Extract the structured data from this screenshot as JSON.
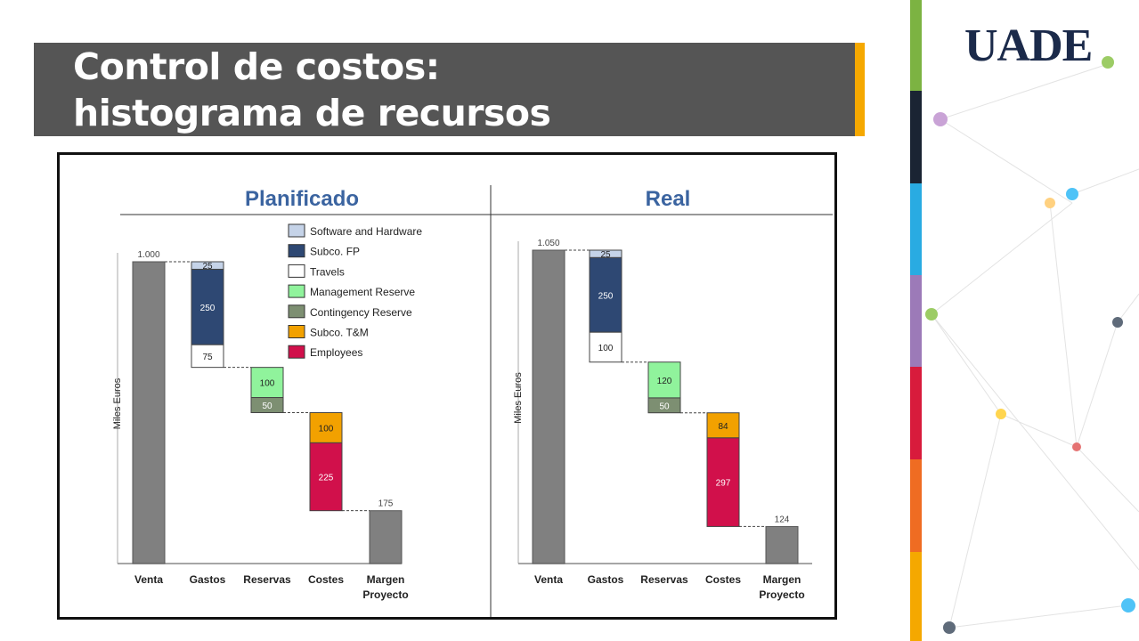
{
  "slide": {
    "title_line1": "Control de costos:",
    "title_line2": "histograma de recursos",
    "logo": "UADE"
  },
  "colors": {
    "title_bar": "#555555",
    "accent": "#f5a800",
    "stripes": [
      "#7cb342",
      "#1a2433",
      "#29abe2",
      "#9c7ab8",
      "#d81b3c",
      "#ef6c22",
      "#f5a800"
    ]
  },
  "legend": [
    {
      "label": "Software and Hardware",
      "color": "#c5d3e8"
    },
    {
      "label": "Subco. FP",
      "color": "#2e4873"
    },
    {
      "label": "Travels",
      "color": "#ffffff"
    },
    {
      "label": "Management Reserve",
      "color": "#90f39c"
    },
    {
      "label": "Contingency Reserve",
      "color": "#7d8f72"
    },
    {
      "label": "Subco. T&M",
      "color": "#f2a100"
    },
    {
      "label": "Employees",
      "color": "#d1104b"
    }
  ],
  "chart_data": [
    {
      "type": "bar",
      "subtype": "waterfall",
      "title": "Planificado",
      "ylabel": "Miles Euros",
      "categories": [
        "Venta",
        "Gastos",
        "Reservas",
        "Costes",
        "Margen\nProyecto"
      ],
      "category_labels": [
        [
          "Venta"
        ],
        [
          "Gastos"
        ],
        [
          "Reservas"
        ],
        [
          "Costes"
        ],
        [
          "Margen",
          "Proyecto"
        ]
      ],
      "ylim": [
        0,
        1000
      ],
      "totals": [
        {
          "category": "Venta",
          "value": 1000,
          "label": "1.000"
        },
        {
          "category": "Margen\nProyecto",
          "value": 175,
          "label": "175"
        }
      ],
      "segments": [
        {
          "category": "Gastos",
          "series": "Software and Hardware",
          "value": 25,
          "label": "25"
        },
        {
          "category": "Gastos",
          "series": "Subco. FP",
          "value": 250,
          "label": "250"
        },
        {
          "category": "Gastos",
          "series": "Travels",
          "value": 75,
          "label": "75"
        },
        {
          "category": "Reservas",
          "series": "Management Reserve",
          "value": 100,
          "label": "100"
        },
        {
          "category": "Reservas",
          "series": "Contingency Reserve",
          "value": 50,
          "label": "50"
        },
        {
          "category": "Costes",
          "series": "Subco. T&M",
          "value": 100,
          "label": "100"
        },
        {
          "category": "Costes",
          "series": "Employees",
          "value": 225,
          "label": "225"
        }
      ]
    },
    {
      "type": "bar",
      "subtype": "waterfall",
      "title": "Real",
      "ylabel": "Miles Euros",
      "categories": [
        "Venta",
        "Gastos",
        "Reservas",
        "Costes",
        "Margen\nProyecto"
      ],
      "category_labels": [
        [
          "Venta"
        ],
        [
          "Gastos"
        ],
        [
          "Reservas"
        ],
        [
          "Costes"
        ],
        [
          "Margen",
          "Proyecto"
        ]
      ],
      "ylim": [
        0,
        1050
      ],
      "totals": [
        {
          "category": "Venta",
          "value": 1050,
          "label": "1.050"
        },
        {
          "category": "Margen\nProyecto",
          "value": 124,
          "label": "124"
        }
      ],
      "segments": [
        {
          "category": "Gastos",
          "series": "Software and Hardware",
          "value": 25,
          "label": "25"
        },
        {
          "category": "Gastos",
          "series": "Subco. FP",
          "value": 250,
          "label": "250"
        },
        {
          "category": "Gastos",
          "series": "Travels",
          "value": 100,
          "label": "100"
        },
        {
          "category": "Reservas",
          "series": "Management Reserve",
          "value": 120,
          "label": "120"
        },
        {
          "category": "Reservas",
          "series": "Contingency Reserve",
          "value": 50,
          "label": "50"
        },
        {
          "category": "Costes",
          "series": "Subco. T&M",
          "value": 84,
          "label": "84"
        },
        {
          "category": "Costes",
          "series": "Employees",
          "value": 297,
          "label": "297"
        }
      ]
    }
  ]
}
